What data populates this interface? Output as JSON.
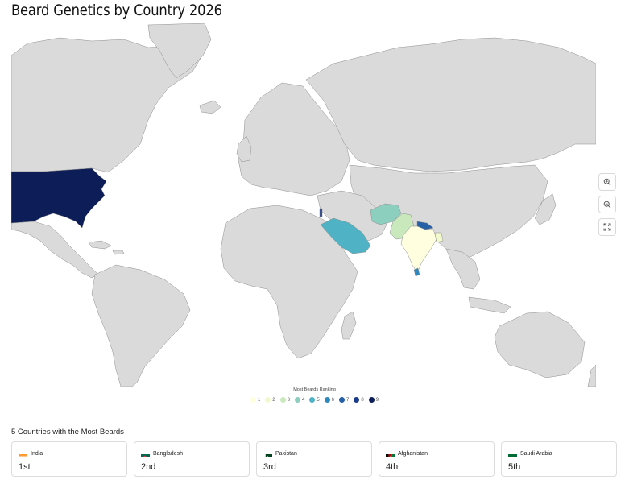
{
  "title": "Beard Genetics by Country 2026",
  "legend": {
    "title": "Most Beards Ranking",
    "items": [
      {
        "label": "1",
        "color": "#ffffe0"
      },
      {
        "label": "2",
        "color": "#f2f9cf"
      },
      {
        "label": "3",
        "color": "#c9e9bd"
      },
      {
        "label": "4",
        "color": "#8ccfbe"
      },
      {
        "label": "5",
        "color": "#4fb3c5"
      },
      {
        "label": "6",
        "color": "#2e88bd"
      },
      {
        "label": "7",
        "color": "#2660a6"
      },
      {
        "label": "8",
        "color": "#1c3b8a"
      },
      {
        "label": "9",
        "color": "#0c1d57"
      }
    ]
  },
  "map_colors": {
    "land": "#dadada",
    "border": "#8e8e8e",
    "usa": "#0c1d57",
    "india": "#ffffe0",
    "bangladesh": "#f2f9cf",
    "pakistan": "#c9e9bd",
    "afghanistan": "#8ccfbe",
    "saudi_arabia": "#4fb3c5",
    "sri_lanka": "#2e88bd",
    "nepal": "#2660a6",
    "israel": "#1c3b8a"
  },
  "zoom_controls": [
    {
      "icon": "zoom-in-icon"
    },
    {
      "icon": "zoom-out-icon"
    },
    {
      "icon": "fullscreen-icon"
    }
  ],
  "top_section": {
    "title": "5 Countries with the Most Beards",
    "cards": [
      {
        "country": "India",
        "rank": "1st",
        "flag": "india-flag-icon"
      },
      {
        "country": "Bangladesh",
        "rank": "2nd",
        "flag": "bangladesh-flag-icon"
      },
      {
        "country": "Pakistan",
        "rank": "3rd",
        "flag": "pakistan-flag-icon"
      },
      {
        "country": "Afghanistan",
        "rank": "4th",
        "flag": "afghanistan-flag-icon"
      },
      {
        "country": "Saudi Arabia",
        "rank": "5th",
        "flag": "saudi-arabia-flag-icon"
      }
    ]
  }
}
